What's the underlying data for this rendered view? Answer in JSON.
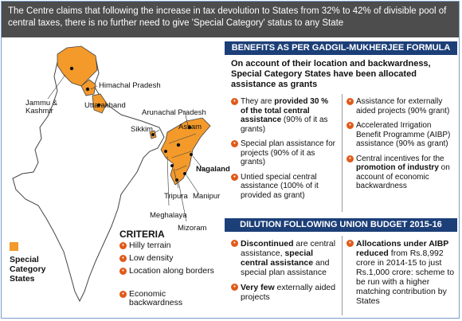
{
  "banner": "The Centre claims that following the increase in tax devolution to States from 32% to 42% of divisible pool of central taxes, there is no further need to give 'Special Category' status to any State",
  "benefits_heading": "BENEFITS AS PER GADGIL-MUKHERJEE FORMULA",
  "intro": "On account of their location and backwardness, Special Category States have been allocated assistance as grants",
  "benefits_left": [
    {
      "pre": "They are ",
      "bold": "provided 30 % of the total central assistance",
      "post": " (90% of it as grants)"
    },
    {
      "pre": "Special plan assistance for projects (90% of it as grants)",
      "bold": "",
      "post": ""
    },
    {
      "pre": "Untied special central assistance (100% of it provided as grant)",
      "bold": "",
      "post": ""
    }
  ],
  "benefits_right": [
    {
      "pre": "Assistance for externally aided projects (90% grant)",
      "bold": "",
      "post": ""
    },
    {
      "pre": "Accelerated Irrigation Benefit Programme (AIBP) assistance (90% as grant)",
      "bold": "",
      "post": ""
    },
    {
      "pre": "Central incentives for the ",
      "bold": "promotion of industry",
      "post": " on account of economic backwardness"
    }
  ],
  "dilution_heading": "DILUTION FOLLOWING UNION BUDGET 2015-16",
  "dilution_left": [
    {
      "pre": "",
      "bold": "Discontinued",
      "post": " are central assistance, ",
      "bold2": "special central assistance",
      "post2": " and special plan assistance"
    },
    {
      "pre": "",
      "bold": "Very few",
      "post": " externally aided projects",
      "bold2": "",
      "post2": ""
    }
  ],
  "dilution_right": [
    {
      "pre": "",
      "bold": "Allocations under AIBP reduced",
      "post": " from Rs.8,992 crore in 2014-15 to just Rs.1,000 crore: scheme to be run with a higher matching contribution by States"
    }
  ],
  "map_labels": {
    "jk": "Jammu & Kashmir",
    "hp": "Himachal Pradesh",
    "uk": "Uttarakhand",
    "ap": "Arunachal Pradesh",
    "sikkim": "Sikkim",
    "assam": "Assam",
    "nagaland": "Nagaland",
    "tripura": "Tripura",
    "manipur": "Manipur",
    "meghalaya": "Meghalaya",
    "mizoram": "Mizoram"
  },
  "criteria_title": "CRITERIA",
  "criteria": [
    "Hilly terrain",
    "Low density",
    "Location along borders",
    "Economic backwardness"
  ],
  "legend_label": "Special Category States",
  "colors": {
    "orange": "#f39a2b",
    "bullet": "#e05a1a",
    "heading": "#1c3f78",
    "banner": "#4d4d4d"
  }
}
